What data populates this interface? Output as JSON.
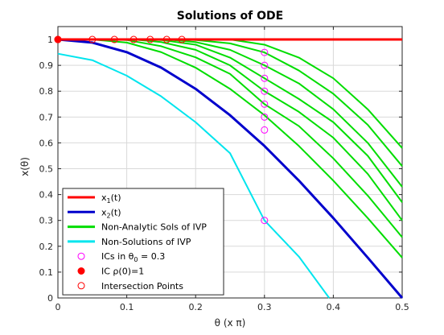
{
  "chart_data": {
    "type": "line",
    "title": "Solutions of ODE",
    "xlabel": "θ (x π)",
    "ylabel": "x(θ)",
    "xlim": [
      0,
      0.5
    ],
    "ylim": [
      0,
      1.05
    ],
    "grid": true,
    "legend_position": "bottom-left",
    "x_ticks": [
      "0",
      "0.1",
      "0.2",
      "0.3",
      "0.4",
      "0.5"
    ],
    "y_ticks": [
      "0",
      "0.1",
      "0.2",
      "0.3",
      "0.4",
      "0.5",
      "0.6",
      "0.7",
      "0.8",
      "0.9",
      "1"
    ],
    "series": [
      {
        "name": "x1(t)",
        "color": "#ff0000",
        "style": "line",
        "x": [
          0,
          0.5
        ],
        "y": [
          1,
          1
        ]
      },
      {
        "name": "x2(t)",
        "color": "#0000cc",
        "style": "line",
        "x": [
          0,
          0.05,
          0.1,
          0.15,
          0.2,
          0.25,
          0.3,
          0.35,
          0.4,
          0.45,
          0.5
        ],
        "y": [
          1,
          0.988,
          0.951,
          0.891,
          0.809,
          0.707,
          0.588,
          0.454,
          0.309,
          0.156,
          0
        ]
      },
      {
        "name": "Non-Analytic Sols of IVP",
        "color": "#00dd00",
        "style": "line",
        "group": [
          {
            "x": [
              0.05,
              0.1,
              0.15,
              0.2,
              0.25,
              0.3,
              0.35,
              0.4,
              0.45,
              0.5
            ],
            "y": [
              1,
              0.988,
              0.951,
              0.891,
              0.809,
              0.707,
              0.588,
              0.454,
              0.309,
              0.156
            ]
          },
          {
            "x": [
              0.082,
              0.1,
              0.15,
              0.2,
              0.25,
              0.3,
              0.35,
              0.4,
              0.45,
              0.5
            ],
            "y": [
              1,
              0.998,
              0.974,
              0.931,
              0.867,
              0.75,
              0.665,
              0.54,
              0.396,
              0.235
            ]
          },
          {
            "x": [
              0.11,
              0.15,
              0.2,
              0.25,
              0.3,
              0.35,
              0.4,
              0.45,
              0.5
            ],
            "y": [
              1,
              0.99,
              0.96,
              0.9,
              0.8,
              0.72,
              0.62,
              0.48,
              0.3
            ]
          },
          {
            "x": [
              0.134,
              0.15,
              0.2,
              0.25,
              0.3,
              0.35,
              0.4,
              0.45,
              0.5
            ],
            "y": [
              1,
              0.998,
              0.98,
              0.93,
              0.85,
              0.77,
              0.68,
              0.55,
              0.37
            ]
          },
          {
            "x": [
              0.158,
              0.2,
              0.25,
              0.3,
              0.35,
              0.4,
              0.45,
              0.5
            ],
            "y": [
              1,
              0.99,
              0.96,
              0.9,
              0.83,
              0.73,
              0.6,
              0.43
            ]
          },
          {
            "x": [
              0.18,
              0.2,
              0.25,
              0.3,
              0.35,
              0.4,
              0.45,
              0.5
            ],
            "y": [
              1,
              0.998,
              0.985,
              0.95,
              0.88,
              0.79,
              0.67,
              0.51
            ]
          },
          {
            "x": [
              0.2,
              0.25,
              0.3,
              0.35,
              0.4,
              0.45,
              0.5
            ],
            "y": [
              1,
              1,
              0.98,
              0.93,
              0.85,
              0.73,
              0.58
            ]
          }
        ]
      },
      {
        "name": "Non-Solutions of IVP",
        "color": "#00e5ee",
        "style": "line",
        "x": [
          0,
          0.05,
          0.1,
          0.15,
          0.2,
          0.25,
          0.3,
          0.35,
          0.394
        ],
        "y": [
          0.945,
          0.92,
          0.86,
          0.78,
          0.68,
          0.56,
          0.3,
          0.16,
          0
        ]
      },
      {
        "name": "ICs in θ0 = 0.3",
        "color": "#ff00ff",
        "style": "marker-open",
        "x": [
          0.3,
          0.3,
          0.3,
          0.3,
          0.3,
          0.3,
          0.3,
          0.3
        ],
        "y": [
          0.95,
          0.9,
          0.85,
          0.8,
          0.75,
          0.7,
          0.65,
          0.3
        ]
      },
      {
        "name": "IC ρ(0)=1",
        "color": "#ff0000",
        "style": "marker-filled",
        "x": [
          0
        ],
        "y": [
          1
        ]
      },
      {
        "name": "Intersection Points",
        "color": "#ff0000",
        "style": "marker-open",
        "x": [
          0,
          0.05,
          0.082,
          0.11,
          0.134,
          0.158,
          0.18
        ],
        "y": [
          1,
          1,
          1,
          1,
          1,
          1,
          1
        ]
      }
    ],
    "legend": [
      {
        "label_main": "x",
        "label_sub": "1",
        "label_tail": "(t)",
        "color": "#ff0000",
        "kind": "line"
      },
      {
        "label_main": "x",
        "label_sub": "2",
        "label_tail": "(t)",
        "color": "#0000cc",
        "kind": "line"
      },
      {
        "label_main": "Non-Analytic Sols of IVP",
        "label_sub": "",
        "label_tail": "",
        "color": "#00dd00",
        "kind": "line"
      },
      {
        "label_main": "Non-Solutions of IVP",
        "label_sub": "",
        "label_tail": "",
        "color": "#00e5ee",
        "kind": "line"
      },
      {
        "label_main": "ICs in θ",
        "label_sub": "0",
        "label_tail": " = 0.3",
        "color": "#ff00ff",
        "kind": "open"
      },
      {
        "label_main": "IC ρ(0)=1",
        "label_sub": "",
        "label_tail": "",
        "color": "#ff0000",
        "kind": "filled"
      },
      {
        "label_main": "Intersection Points",
        "label_sub": "",
        "label_tail": "",
        "color": "#ff0000",
        "kind": "open"
      }
    ]
  }
}
